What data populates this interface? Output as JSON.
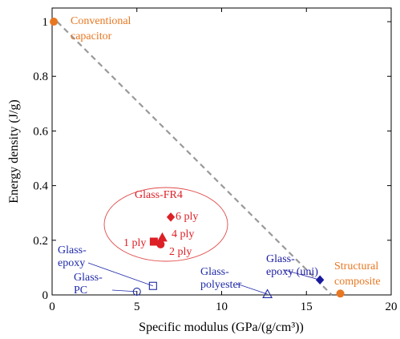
{
  "chart_data": {
    "type": "scatter",
    "xlabel": "Specific modulus (GPa/(g/cm³))",
    "ylabel": "Energy density (J/g)",
    "xlim": [
      0,
      20
    ],
    "ylim": [
      0,
      1.05
    ],
    "xticks": [
      0,
      5,
      10,
      15,
      20
    ],
    "yticks": [
      0,
      0.2,
      0.4,
      0.6,
      0.8,
      1
    ],
    "ytick_labels": [
      "0",
      "0.2",
      "0.4",
      "0.6",
      "0.8",
      "1"
    ],
    "grid": false,
    "trend_line": {
      "from": [
        0.3,
        1.0
      ],
      "to": [
        16.5,
        0.0
      ],
      "style": "dashed"
    },
    "group_label": "Glass-FR4",
    "points": [
      {
        "label": "Conventional capacitor",
        "label_lines": [
          "Conventional",
          "capacitor"
        ],
        "x": 0.1,
        "y": 1.0,
        "marker": "circle",
        "filled": true,
        "color": "#e87722"
      },
      {
        "label": "Structural composite",
        "label_lines": [
          "Structural",
          "composite"
        ],
        "x": 17.0,
        "y": 0.005,
        "marker": "circle",
        "filled": true,
        "color": "#e87722"
      },
      {
        "label": "1 ply",
        "label_lines": [
          "1 ply"
        ],
        "x": 6.0,
        "y": 0.195,
        "marker": "square",
        "filled": true,
        "color": "#dd1f26"
      },
      {
        "label": "2 ply",
        "label_lines": [
          "2 ply"
        ],
        "x": 6.4,
        "y": 0.185,
        "marker": "circle",
        "filled": true,
        "color": "#dd1f26"
      },
      {
        "label": "4 ply",
        "label_lines": [
          "4 ply"
        ],
        "x": 6.5,
        "y": 0.21,
        "marker": "triangle",
        "filled": true,
        "color": "#dd1f26"
      },
      {
        "label": "6 ply",
        "label_lines": [
          "6 ply"
        ],
        "x": 7.0,
        "y": 0.285,
        "marker": "diamond",
        "filled": true,
        "color": "#dd1f26"
      },
      {
        "label": "Glass-epoxy",
        "label_lines": [
          "Glass-",
          "epoxy"
        ],
        "x": 5.95,
        "y": 0.033,
        "marker": "square",
        "filled": false,
        "color": "#1f2aa8"
      },
      {
        "label": "Glass-PC",
        "label_lines": [
          "Glass-",
          "PC"
        ],
        "x": 5.0,
        "y": 0.012,
        "marker": "circle",
        "filled": false,
        "color": "#1f2aa8"
      },
      {
        "label": "Glass-polyester",
        "label_lines": [
          "Glass-",
          "polyester"
        ],
        "x": 12.7,
        "y": 0.003,
        "marker": "triangle",
        "filled": false,
        "color": "#1f2aa8"
      },
      {
        "label": "Glass-epoxy (uni)",
        "label_lines": [
          "Glass-",
          "epoxy (uni)"
        ],
        "x": 15.8,
        "y": 0.055,
        "marker": "diamond",
        "filled": true,
        "color": "#1a1aa0"
      }
    ]
  }
}
